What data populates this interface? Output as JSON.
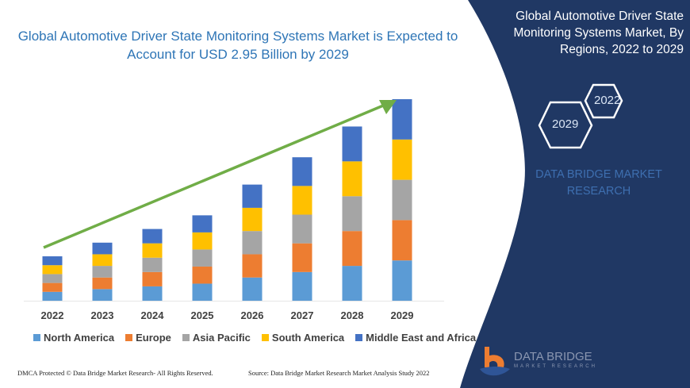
{
  "title": "Global Automotive Driver State Monitoring Systems Market is Expected to Account for USD 2.95 Billion by 2029",
  "side_panel": {
    "title": "Global Automotive Driver State Monitoring Systems Market, By Regions, 2022 to 2029",
    "hex_start": "2022",
    "hex_end": "2029",
    "brand": "DATA BRIDGE MARKET RESEARCH",
    "logo_text": "DATA BRIDGE",
    "logo_sub": "MARKET RESEARCH",
    "background": "#203864"
  },
  "footer": {
    "left": "DMCA Protected © Data Bridge Market Research- All Rights Reserved.",
    "right": "Source: Data Bridge Market Research Market Analysis Study 2022"
  },
  "chart_data": {
    "type": "bar",
    "stacked": true,
    "title": "Global Automotive Driver State Monitoring Systems Market is Expected to Account for USD 2.95 Billion by 2029",
    "categories": [
      "2022",
      "2023",
      "2024",
      "2025",
      "2026",
      "2027",
      "2028",
      "2029"
    ],
    "series": [
      {
        "name": "North America",
        "color": "#5B9BD5",
        "values": [
          0.13,
          0.17,
          0.21,
          0.25,
          0.34,
          0.42,
          0.51,
          0.59
        ]
      },
      {
        "name": "Europe",
        "color": "#ED7D31",
        "values": [
          0.13,
          0.17,
          0.21,
          0.25,
          0.34,
          0.42,
          0.51,
          0.59
        ]
      },
      {
        "name": "Asia Pacific",
        "color": "#A5A5A5",
        "values": [
          0.13,
          0.17,
          0.21,
          0.25,
          0.34,
          0.42,
          0.51,
          0.59
        ]
      },
      {
        "name": "South America",
        "color": "#FFC000",
        "values": [
          0.13,
          0.17,
          0.21,
          0.25,
          0.34,
          0.42,
          0.51,
          0.59
        ]
      },
      {
        "name": "Middle East and Africa",
        "color": "#4472C4",
        "values": [
          0.13,
          0.17,
          0.21,
          0.25,
          0.34,
          0.42,
          0.51,
          0.59
        ]
      }
    ],
    "ylim": [
      0,
      2.95
    ],
    "grid": false,
    "legend": "bottom",
    "trend_arrow_color": "#70AD47"
  }
}
